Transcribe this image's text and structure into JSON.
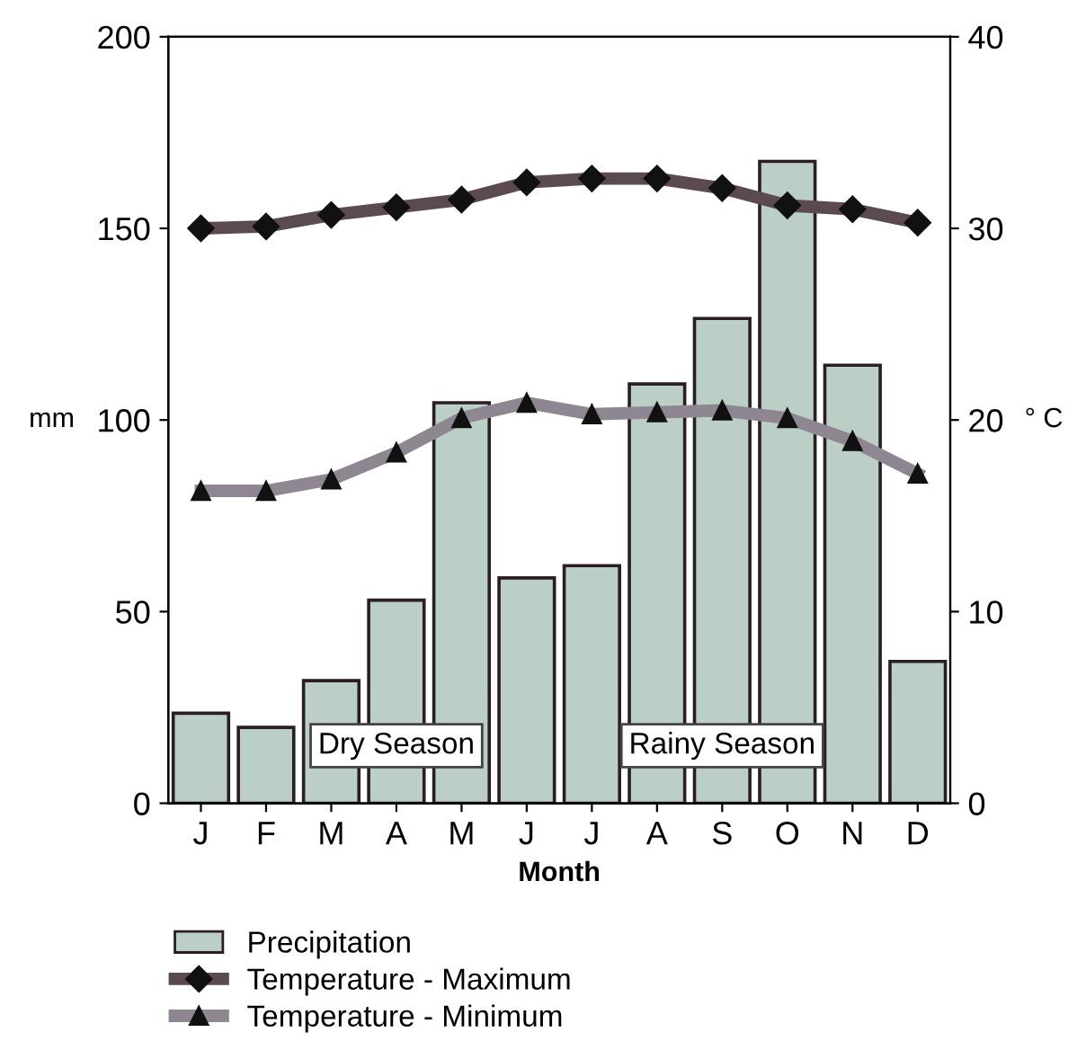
{
  "chart_data": {
    "type": "bar",
    "categories": [
      "J",
      "F",
      "M",
      "A",
      "M",
      "J",
      "J",
      "A",
      "S",
      "O",
      "N",
      "D"
    ],
    "xlabel": "Month",
    "ylabel": "mm",
    "y2label": "° C",
    "series": [
      {
        "name": "Precipitation",
        "color": "#bccfc6",
        "values": [
          23.5,
          19.8,
          32,
          53,
          104.5,
          58.8,
          62,
          109.4,
          126.5,
          167.5,
          114.3,
          37
        ]
      },
      {
        "name": "Temperature - Maximum",
        "type": "line",
        "axis": "y2",
        "marker": "diamond",
        "color": "#5c4a52",
        "values": [
          30,
          30.1,
          30.7,
          31.1,
          31.5,
          32.4,
          32.6,
          32.6,
          32.1,
          31.2,
          31.0,
          30.3
        ]
      },
      {
        "name": "Temperature - Minimum",
        "type": "line",
        "axis": "y2",
        "marker": "triangle",
        "color": "#8e8690",
        "values": [
          16.3,
          16.3,
          16.9,
          18.3,
          20.1,
          20.9,
          20.3,
          20.4,
          20.5,
          20.1,
          18.9,
          17.2
        ]
      }
    ],
    "ylim": [
      0,
      200
    ],
    "yticks": [
      0,
      50,
      100,
      150,
      200
    ],
    "y2lim": [
      0,
      40
    ],
    "y2ticks": [
      0,
      10,
      20,
      30,
      40
    ],
    "annotations": [
      "Dry Season",
      "Rainy Season"
    ],
    "legend": "bottom",
    "grid": false
  }
}
